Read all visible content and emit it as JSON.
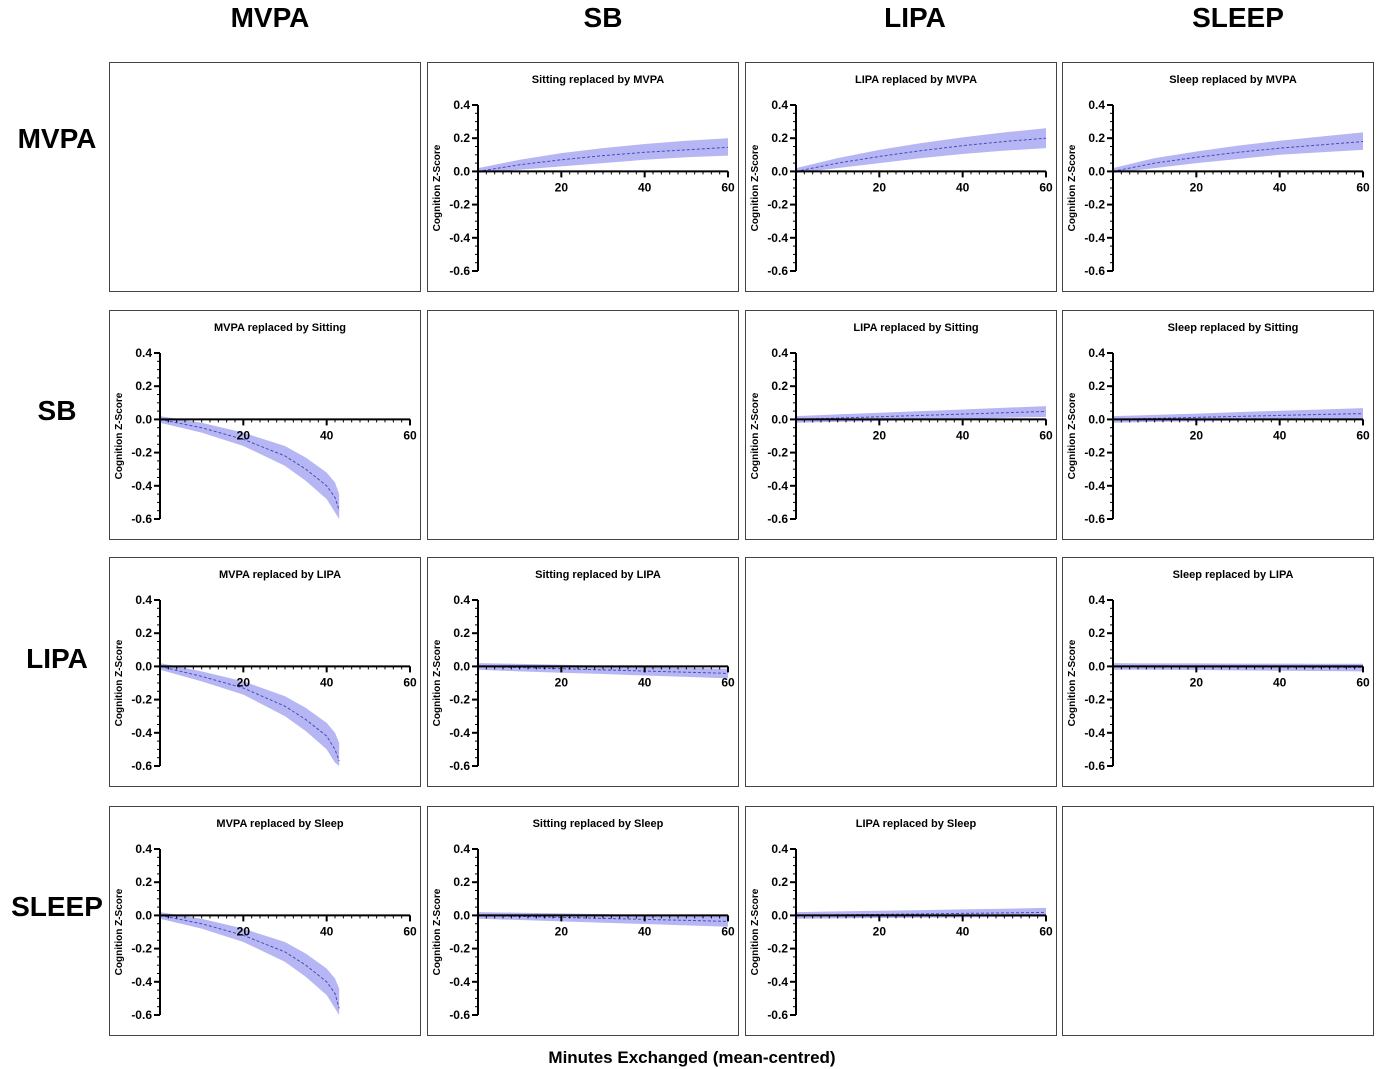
{
  "figure": {
    "col_headers": [
      "MVPA",
      "SB",
      "LIPA",
      "SLEEP"
    ],
    "row_headers": [
      "MVPA",
      "SB",
      "LIPA",
      "SLEEP"
    ],
    "x_title": "Minutes Exchanged (mean-centred)",
    "band_color": "#a9a9f2",
    "line_color": "#4b4bb8"
  },
  "chart_data": [
    {
      "type": "area",
      "row": 0,
      "col": 1,
      "title": "Sitting replaced by MVPA",
      "ylabel": "Cognition Z-Score",
      "x": [
        0,
        10,
        20,
        30,
        40,
        50,
        60
      ],
      "series": [
        {
          "values": [
            0.0,
            0.04,
            0.07,
            0.095,
            0.115,
            0.13,
            0.145
          ]
        }
      ],
      "lower": [
        -0.01,
        0.01,
        0.03,
        0.05,
        0.07,
        0.085,
        0.095
      ],
      "upper": [
        0.02,
        0.07,
        0.11,
        0.14,
        0.165,
        0.185,
        0.2
      ],
      "xticks": [
        20,
        40,
        60
      ],
      "yticks": [
        0.4,
        0.2,
        0.0,
        -0.2,
        -0.4,
        -0.6
      ],
      "xlim": [
        0,
        60
      ],
      "ylim": [
        -0.6,
        0.4
      ]
    },
    {
      "type": "area",
      "row": 0,
      "col": 2,
      "title": "LIPA replaced by MVPA",
      "ylabel": "Cognition Z-Score",
      "x": [
        0,
        10,
        20,
        30,
        40,
        50,
        60
      ],
      "series": [
        {
          "values": [
            0.0,
            0.05,
            0.09,
            0.125,
            0.155,
            0.18,
            0.2
          ]
        }
      ],
      "lower": [
        -0.01,
        0.02,
        0.05,
        0.08,
        0.105,
        0.125,
        0.14
      ],
      "upper": [
        0.02,
        0.08,
        0.13,
        0.17,
        0.205,
        0.235,
        0.26
      ],
      "xticks": [
        20,
        40,
        60
      ],
      "yticks": [
        0.4,
        0.2,
        0.0,
        -0.2,
        -0.4,
        -0.6
      ],
      "xlim": [
        0,
        60
      ],
      "ylim": [
        -0.6,
        0.4
      ]
    },
    {
      "type": "area",
      "row": 0,
      "col": 3,
      "title": "Sleep  replaced by MVPA",
      "ylabel": "Cognition Z-Score",
      "x": [
        0,
        10,
        20,
        30,
        40,
        50,
        60
      ],
      "series": [
        {
          "values": [
            0.0,
            0.05,
            0.085,
            0.115,
            0.14,
            0.16,
            0.18
          ]
        }
      ],
      "lower": [
        -0.01,
        0.02,
        0.05,
        0.075,
        0.1,
        0.115,
        0.13
      ],
      "upper": [
        0.02,
        0.08,
        0.12,
        0.155,
        0.185,
        0.21,
        0.235
      ],
      "xticks": [
        20,
        40,
        60
      ],
      "yticks": [
        0.4,
        0.2,
        0.0,
        -0.2,
        -0.4,
        -0.6
      ],
      "xlim": [
        0,
        60
      ],
      "ylim": [
        -0.6,
        0.4
      ]
    },
    {
      "type": "area",
      "row": 1,
      "col": 0,
      "title": "MVPA replaced by Sitting",
      "ylabel": "Cognition Z-Score",
      "x": [
        0,
        10,
        20,
        30,
        35,
        40,
        42,
        43
      ],
      "series": [
        {
          "values": [
            0.0,
            -0.05,
            -0.12,
            -0.22,
            -0.3,
            -0.4,
            -0.47,
            -0.55
          ]
        }
      ],
      "lower": [
        -0.02,
        -0.08,
        -0.16,
        -0.28,
        -0.37,
        -0.48,
        -0.56,
        -0.6
      ],
      "upper": [
        0.02,
        -0.02,
        -0.08,
        -0.16,
        -0.23,
        -0.32,
        -0.38,
        -0.45
      ],
      "xticks": [
        20,
        40,
        60
      ],
      "yticks": [
        0.4,
        0.2,
        0.0,
        -0.2,
        -0.4,
        -0.6
      ],
      "xlim": [
        0,
        60
      ],
      "ylim": [
        -0.6,
        0.4
      ]
    },
    {
      "type": "area",
      "row": 1,
      "col": 2,
      "title": "LIPA replaced by Sitting",
      "ylabel": "Cognition Z-Score",
      "x": [
        0,
        10,
        20,
        30,
        40,
        50,
        60
      ],
      "series": [
        {
          "values": [
            0.0,
            0.008,
            0.016,
            0.024,
            0.032,
            0.04,
            0.048
          ]
        }
      ],
      "lower": [
        -0.02,
        -0.015,
        -0.01,
        -0.005,
        0.0,
        0.01,
        0.015
      ],
      "upper": [
        0.02,
        0.03,
        0.04,
        0.05,
        0.06,
        0.07,
        0.08
      ],
      "xticks": [
        20,
        40,
        60
      ],
      "yticks": [
        0.4,
        0.2,
        0.0,
        -0.2,
        -0.4,
        -0.6
      ],
      "xlim": [
        0,
        60
      ],
      "ylim": [
        -0.6,
        0.4
      ]
    },
    {
      "type": "area",
      "row": 1,
      "col": 3,
      "title": "Sleep replaced by Sitting",
      "ylabel": "Cognition Z-Score",
      "x": [
        0,
        10,
        20,
        30,
        40,
        50,
        60
      ],
      "series": [
        {
          "values": [
            0.0,
            0.006,
            0.012,
            0.018,
            0.024,
            0.03,
            0.035
          ]
        }
      ],
      "lower": [
        -0.02,
        -0.015,
        -0.012,
        -0.008,
        -0.004,
        0.0,
        0.005
      ],
      "upper": [
        0.02,
        0.027,
        0.035,
        0.044,
        0.052,
        0.06,
        0.068
      ],
      "xticks": [
        20,
        40,
        60
      ],
      "yticks": [
        0.4,
        0.2,
        0.0,
        -0.2,
        -0.4,
        -0.6
      ],
      "xlim": [
        0,
        60
      ],
      "ylim": [
        -0.6,
        0.4
      ]
    },
    {
      "type": "area",
      "row": 2,
      "col": 0,
      "title": "MVPA replaced by LIPA",
      "ylabel": "Cognition Z-Score",
      "x": [
        0,
        10,
        20,
        30,
        35,
        40,
        42,
        43
      ],
      "series": [
        {
          "values": [
            0.0,
            -0.06,
            -0.13,
            -0.24,
            -0.32,
            -0.42,
            -0.5,
            -0.57
          ]
        }
      ],
      "lower": [
        -0.02,
        -0.09,
        -0.17,
        -0.3,
        -0.39,
        -0.5,
        -0.58,
        -0.6
      ],
      "upper": [
        0.02,
        -0.03,
        -0.09,
        -0.18,
        -0.25,
        -0.34,
        -0.4,
        -0.46
      ],
      "xticks": [
        20,
        40,
        60
      ],
      "yticks": [
        0.4,
        0.2,
        0.0,
        -0.2,
        -0.4,
        -0.6
      ],
      "xlim": [
        0,
        60
      ],
      "ylim": [
        -0.6,
        0.4
      ]
    },
    {
      "type": "area",
      "row": 2,
      "col": 1,
      "title": "Sitting replaced by LIPA",
      "ylabel": "Cognition Z-Score",
      "x": [
        0,
        10,
        20,
        30,
        40,
        50,
        60
      ],
      "series": [
        {
          "values": [
            0.0,
            -0.007,
            -0.014,
            -0.021,
            -0.028,
            -0.035,
            -0.042
          ]
        }
      ],
      "lower": [
        -0.02,
        -0.03,
        -0.038,
        -0.046,
        -0.055,
        -0.063,
        -0.072
      ],
      "upper": [
        0.02,
        0.015,
        0.01,
        0.004,
        -0.002,
        -0.008,
        -0.014
      ],
      "xticks": [
        20,
        40,
        60
      ],
      "yticks": [
        0.4,
        0.2,
        0.0,
        -0.2,
        -0.4,
        -0.6
      ],
      "xlim": [
        0,
        60
      ],
      "ylim": [
        -0.6,
        0.4
      ]
    },
    {
      "type": "area",
      "row": 2,
      "col": 3,
      "title": "Sleep replaced by LIPA",
      "ylabel": "Cognition Z-Score",
      "x": [
        0,
        10,
        20,
        30,
        40,
        50,
        60
      ],
      "series": [
        {
          "values": [
            0.0,
            -0.001,
            -0.002,
            -0.003,
            -0.004,
            -0.005,
            -0.006
          ]
        }
      ],
      "lower": [
        -0.02,
        -0.02,
        -0.022,
        -0.024,
        -0.026,
        -0.028,
        -0.03
      ],
      "upper": [
        0.02,
        0.018,
        0.018,
        0.017,
        0.017,
        0.016,
        0.016
      ],
      "xticks": [
        20,
        40,
        60
      ],
      "yticks": [
        0.4,
        0.2,
        0.0,
        -0.2,
        -0.4,
        -0.6
      ],
      "xlim": [
        0,
        60
      ],
      "ylim": [
        -0.6,
        0.4
      ]
    },
    {
      "type": "area",
      "row": 3,
      "col": 0,
      "title": "MVPA replaced by Sleep",
      "ylabel": "Cognition Z-Score",
      "x": [
        0,
        10,
        20,
        30,
        35,
        40,
        42,
        43
      ],
      "series": [
        {
          "values": [
            0.0,
            -0.05,
            -0.12,
            -0.22,
            -0.3,
            -0.4,
            -0.47,
            -0.56
          ]
        }
      ],
      "lower": [
        -0.02,
        -0.08,
        -0.16,
        -0.28,
        -0.37,
        -0.48,
        -0.56,
        -0.6
      ],
      "upper": [
        0.02,
        -0.02,
        -0.08,
        -0.16,
        -0.23,
        -0.32,
        -0.38,
        -0.44
      ],
      "xticks": [
        20,
        40,
        60
      ],
      "yticks": [
        0.4,
        0.2,
        0.0,
        -0.2,
        -0.4,
        -0.6
      ],
      "xlim": [
        0,
        60
      ],
      "ylim": [
        -0.6,
        0.4
      ]
    },
    {
      "type": "area",
      "row": 3,
      "col": 1,
      "title": "Sitting replaced by Sleep",
      "ylabel": "Cognition Z-Score",
      "x": [
        0,
        10,
        20,
        30,
        40,
        50,
        60
      ],
      "series": [
        {
          "values": [
            0.0,
            -0.006,
            -0.012,
            -0.018,
            -0.024,
            -0.03,
            -0.036
          ]
        }
      ],
      "lower": [
        -0.02,
        -0.028,
        -0.036,
        -0.044,
        -0.052,
        -0.06,
        -0.068
      ],
      "upper": [
        0.02,
        0.016,
        0.012,
        0.008,
        0.004,
        0.0,
        -0.004
      ],
      "xticks": [
        20,
        40,
        60
      ],
      "yticks": [
        0.4,
        0.2,
        0.0,
        -0.2,
        -0.4,
        -0.6
      ],
      "xlim": [
        0,
        60
      ],
      "ylim": [
        -0.6,
        0.4
      ]
    },
    {
      "type": "area",
      "row": 3,
      "col": 2,
      "title": "LIPA replaced by Sleep",
      "ylabel": "Cognition Z-Score",
      "x": [
        0,
        10,
        20,
        30,
        40,
        50,
        60
      ],
      "series": [
        {
          "values": [
            0.0,
            0.003,
            0.006,
            0.009,
            0.012,
            0.015,
            0.018
          ]
        }
      ],
      "lower": [
        -0.02,
        -0.018,
        -0.016,
        -0.014,
        -0.012,
        -0.01,
        -0.008
      ],
      "upper": [
        0.02,
        0.024,
        0.028,
        0.032,
        0.036,
        0.04,
        0.045
      ],
      "xticks": [
        20,
        40,
        60
      ],
      "yticks": [
        0.4,
        0.2,
        0.0,
        -0.2,
        -0.4,
        -0.6
      ],
      "xlim": [
        0,
        60
      ],
      "ylim": [
        -0.6,
        0.4
      ]
    }
  ]
}
